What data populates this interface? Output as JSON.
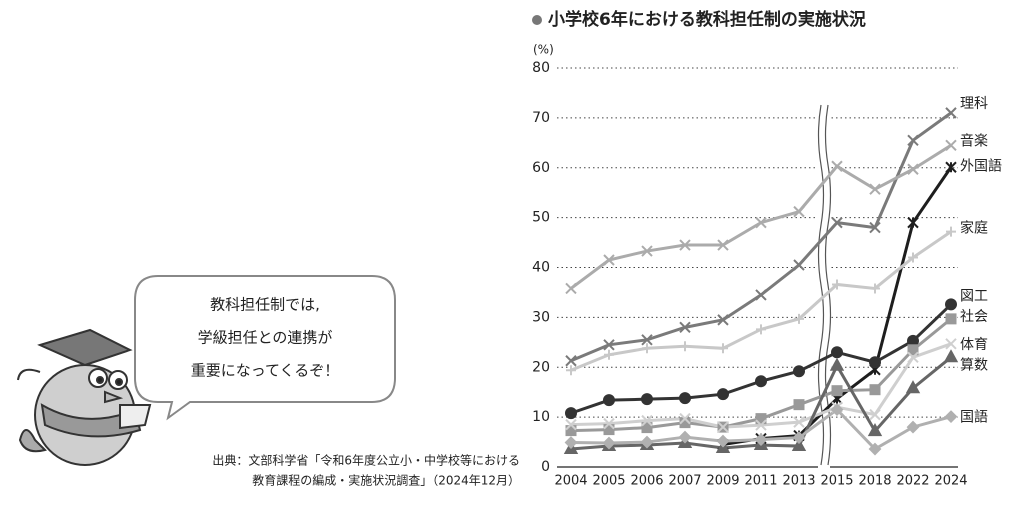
{
  "chart_data": {
    "type": "line",
    "title": "小学校6年における教科担任制の実施状況",
    "y_label": "(%)",
    "categories": [
      "2004",
      "2005",
      "2006",
      "2007",
      "2009",
      "2011",
      "2013",
      "2015",
      "2018",
      "2022",
      "2024"
    ],
    "ylim": [
      0,
      80
    ],
    "yticks": [
      0,
      10,
      20,
      30,
      40,
      50,
      60,
      70,
      80
    ],
    "grid": true,
    "series": [
      {
        "name": "理科",
        "color": "#7a7a7a",
        "marker": "x",
        "values": [
          21.3,
          24.5,
          25.5,
          28,
          29.5,
          34.5,
          40.5,
          49,
          48,
          65.5,
          71
        ]
      },
      {
        "name": "音楽",
        "color": "#ababab",
        "marker": "x",
        "values": [
          35.8,
          41.5,
          43.3,
          44.5,
          44.5,
          49,
          51.2,
          60.3,
          55.7,
          59.7,
          64.5
        ]
      },
      {
        "name": "外国語",
        "color": "#1e1e1e",
        "marker": "star",
        "values": [
          null,
          null,
          null,
          null,
          4.5,
          5.7,
          6.3,
          13.7,
          19.5,
          49,
          60.1
        ]
      },
      {
        "name": "家庭",
        "color": "#c8c8c8",
        "marker": "plus",
        "values": [
          19.4,
          22.5,
          23.8,
          24.2,
          23.8,
          27.6,
          29.7,
          36.6,
          35.8,
          42,
          47.2
        ]
      },
      {
        "name": "図工",
        "color": "#333333",
        "marker": "circle",
        "values": [
          10.8,
          13.4,
          13.6,
          13.8,
          14.6,
          17.2,
          19.2,
          23,
          21,
          25.3,
          32.6
        ]
      },
      {
        "name": "社会",
        "color": "#999999",
        "marker": "square",
        "values": [
          7.3,
          7.5,
          7.9,
          8.9,
          8,
          9.7,
          12.5,
          15.3,
          15.5,
          23.5,
          29.7
        ]
      },
      {
        "name": "体育",
        "color": "#cfcfcf",
        "marker": "x",
        "values": [
          8.5,
          8.7,
          9.3,
          9.7,
          8,
          8.4,
          9,
          12,
          10.5,
          22,
          24.7
        ]
      },
      {
        "name": "算数",
        "color": "#666666",
        "marker": "triangle",
        "values": [
          3.6,
          4.2,
          4.4,
          4.8,
          3.8,
          4.4,
          4.2,
          20.3,
          7.2,
          15.8,
          22
        ]
      },
      {
        "name": "国語",
        "color": "#b0b0b0",
        "marker": "diamond",
        "values": [
          4.9,
          4.8,
          5,
          6,
          5.2,
          5.5,
          5.9,
          11.5,
          3.6,
          8,
          10.1
        ]
      }
    ]
  },
  "speech": {
    "lines": [
      "教科担任制では,",
      "学級担任との連携が",
      "重要になってくるぞ！"
    ]
  },
  "source": {
    "lines": [
      "出典：文部科学省「令和6年度公立小・中学校等における",
      "教育課程の編成・実施状況調査」（2024年12月）"
    ]
  }
}
